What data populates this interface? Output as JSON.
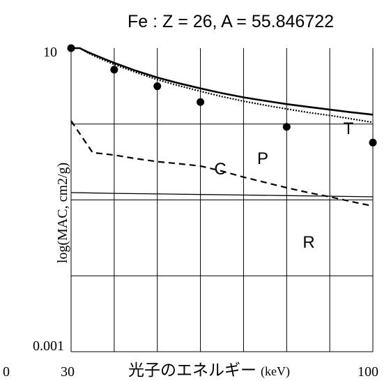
{
  "chart_data": {
    "type": "line",
    "title": "Fe : Z = 26, A = 55.846722",
    "xlabel_main": "光子のエネルギー",
    "xlabel_unit": "(keV)",
    "ylabel": "log(MAC, cm2/g)",
    "yscale": "log",
    "ylim": [
      0.001,
      10
    ],
    "xlim": [
      30,
      100
    ],
    "x_tick_labels": [
      "0",
      "30",
      "100"
    ],
    "y_tick_labels": [
      "10",
      "0.001"
    ],
    "x_grid": [
      30,
      40,
      50,
      60,
      70,
      80,
      90,
      100
    ],
    "y_grid": [
      0.001,
      0.01,
      0.1,
      1,
      10
    ],
    "curve_labels": [
      "T",
      "C",
      "P",
      "R"
    ],
    "series": [
      {
        "label": "T",
        "style": "solid-thick",
        "x": [
          30,
          32,
          34,
          36,
          38,
          40,
          45,
          50,
          55,
          60,
          65,
          70,
          75,
          80,
          85,
          90,
          95,
          100
        ],
        "y": [
          10.5,
          10.0,
          8.8,
          7.9,
          7.1,
          6.4,
          5.05,
          4.1,
          3.45,
          2.95,
          2.55,
          2.25,
          2.02,
          1.83,
          1.68,
          1.55,
          1.43,
          1.33
        ]
      },
      {
        "label": "P",
        "style": "dotted",
        "x": [
          30,
          32,
          34,
          36,
          38,
          40,
          45,
          50,
          55,
          60,
          65,
          70,
          75,
          80,
          85,
          90,
          95,
          100
        ],
        "y": [
          10.5,
          10.0,
          8.6,
          7.6,
          6.8,
          6.1,
          4.8,
          3.85,
          3.2,
          2.7,
          2.3,
          2.0,
          1.77,
          1.58,
          1.42,
          1.3,
          1.17,
          1.05
        ]
      },
      {
        "label": "C",
        "style": "solid-thin",
        "x": [
          30,
          40,
          50,
          60,
          70,
          80,
          90,
          100
        ],
        "y": [
          0.125,
          0.122,
          0.12,
          0.118,
          0.116,
          0.114,
          0.112,
          0.11
        ]
      },
      {
        "label": "R",
        "style": "dashed",
        "x": [
          30,
          35,
          40,
          45,
          50,
          55,
          60,
          65,
          70,
          75,
          80,
          85,
          90,
          95,
          100
        ],
        "y": [
          1.1,
          0.42,
          0.39,
          0.35,
          0.32,
          0.3,
          0.28,
          0.24,
          0.2,
          0.17,
          0.145,
          0.125,
          0.11,
          0.095,
          0.083
        ]
      },
      {
        "label": "data",
        "style": "markers",
        "x": [
          30,
          40,
          50,
          60,
          80,
          100
        ],
        "y": [
          10,
          5.2,
          3.15,
          1.95,
          0.92,
          0.57
        ]
      }
    ]
  }
}
